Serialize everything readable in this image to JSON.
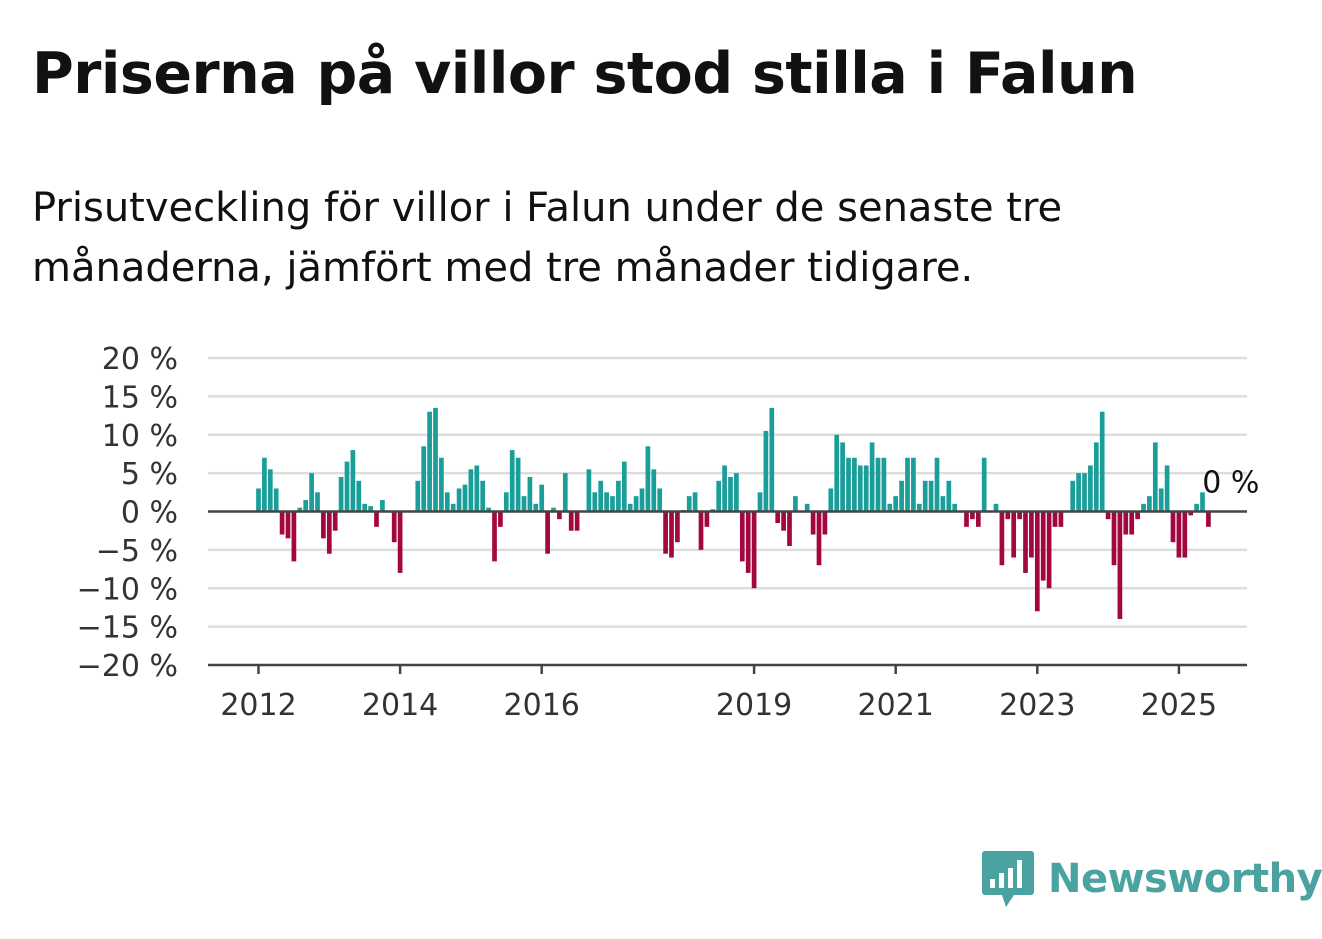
{
  "title": "Priserna på villor stod stilla i Falun",
  "subtitle": "Prisutveckling för villor i Falun under de senaste tre månaderna, jämfört med tre månader tidigare.",
  "brand": {
    "name": "Newsworthy",
    "color": "#4aa3a0"
  },
  "chart_data": {
    "type": "bar",
    "x_start": "2012-01",
    "y_unit": "%",
    "ylim": [
      -20,
      20
    ],
    "y_ticks": [
      20,
      15,
      10,
      5,
      0,
      -5,
      -10,
      -15,
      -20
    ],
    "y_tick_labels": [
      "20 %",
      "15 %",
      "10 %",
      "5 %",
      "0 %",
      "−5 %",
      "−10 %",
      "−15 %",
      "−20 %"
    ],
    "x_tick_labels": [
      {
        "label": "2012",
        "year": 2012
      },
      {
        "label": "2014",
        "year": 2014
      },
      {
        "label": "2016",
        "year": 2016
      },
      {
        "label": "2019",
        "year": 2019
      },
      {
        "label": "2021",
        "year": 2021
      },
      {
        "label": "2023",
        "year": 2023
      },
      {
        "label": "2025",
        "year": 2025
      }
    ],
    "colors": {
      "positive": "#1a9e99",
      "negative": "#a3073f",
      "grid": "#dddddd",
      "axis": "#444444"
    },
    "last_value_label": "0 %",
    "values": [
      3,
      7,
      5.5,
      3,
      -3,
      -3.5,
      -6.5,
      0.5,
      1.5,
      5,
      2.5,
      -3.5,
      -5.5,
      -2.5,
      4.5,
      6.5,
      8,
      4,
      1,
      0.7,
      -2,
      1.5,
      0,
      -4,
      -8,
      0,
      0,
      4,
      8.5,
      13,
      13.5,
      7,
      2.5,
      1,
      3,
      3.5,
      5.5,
      6,
      4,
      0.5,
      -6.5,
      -2,
      2.5,
      8,
      7,
      2,
      4.5,
      1,
      3.5,
      -5.5,
      0.5,
      -1,
      5,
      -2.5,
      -2.5,
      0,
      5.5,
      2.5,
      4,
      2.5,
      2,
      4,
      6.5,
      1,
      2,
      3,
      8.5,
      5.5,
      3,
      -5.5,
      -6,
      -4,
      0.2,
      2,
      2.5,
      -5,
      -2,
      0.3,
      4,
      6,
      4.5,
      5,
      -6.5,
      -8,
      -10,
      2.5,
      10.5,
      13.5,
      -1.5,
      -2.5,
      -4.5,
      2,
      0,
      1,
      -3,
      -7,
      -3,
      3,
      10,
      9,
      7,
      7,
      6,
      6,
      9,
      7,
      7,
      1,
      2,
      4,
      7,
      7,
      1,
      4,
      4,
      7,
      2,
      4,
      1,
      0,
      -2,
      -1,
      -2,
      7,
      0,
      1,
      -7,
      -1,
      -6,
      -1,
      -8,
      -6,
      -13,
      -9,
      -10,
      -2,
      -2,
      0,
      4,
      5,
      5,
      6,
      9,
      13,
      -1,
      -7,
      -14,
      -3,
      -3,
      -1,
      1,
      2,
      9,
      3,
      6,
      -4,
      -6,
      -6,
      -0.5,
      1,
      2.5,
      -2,
      0
    ]
  }
}
